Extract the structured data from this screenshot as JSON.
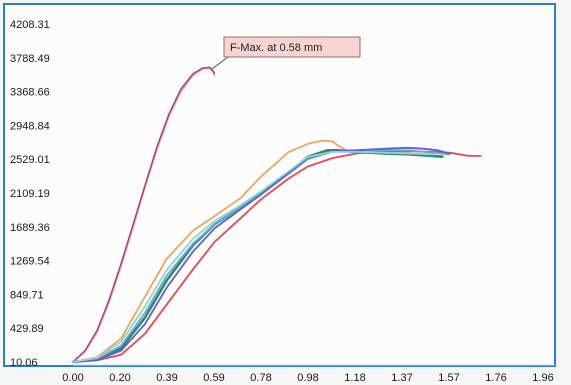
{
  "chart_data": {
    "type": "line",
    "title": "",
    "xlabel": "",
    "ylabel": "",
    "xlim": [
      0.0,
      1.96
    ],
    "ylim": [
      10.06,
      4208.31
    ],
    "grid": false,
    "legend": "none",
    "x_ticks": [
      "0.00",
      "0.20",
      "0.39",
      "0.59",
      "0.78",
      "0.98",
      "1.18",
      "1.37",
      "1.57",
      "1.76",
      "1.96"
    ],
    "y_ticks": [
      "10.06",
      "429.89",
      "849.71",
      "1269.54",
      "1689.36",
      "2109.19",
      "2529.01",
      "2948.84",
      "3368.66",
      "3788.49",
      "4208.31"
    ],
    "annotation": {
      "text": "F-Max. at 0.58 mm",
      "x": 0.58,
      "y": 3650
    },
    "series": [
      {
        "color": "#c7a6d4",
        "x": [
          0.0,
          0.05,
          0.1,
          0.15,
          0.2,
          0.25,
          0.3,
          0.35,
          0.4,
          0.45,
          0.5,
          0.54,
          0.57,
          0.58,
          0.59
        ],
        "y": [
          10,
          140,
          380,
          750,
          1200,
          1680,
          2180,
          2650,
          3060,
          3370,
          3570,
          3650,
          3660,
          3640,
          3570
        ]
      },
      {
        "color": "#b33a6e",
        "x": [
          0.0,
          0.05,
          0.1,
          0.15,
          0.2,
          0.25,
          0.3,
          0.35,
          0.4,
          0.45,
          0.5,
          0.54,
          0.57,
          0.59
        ],
        "y": [
          10,
          150,
          400,
          780,
          1230,
          1710,
          2200,
          2680,
          3090,
          3400,
          3590,
          3660,
          3670,
          3600
        ]
      },
      {
        "color": "#f0a460",
        "x": [
          0.0,
          0.1,
          0.2,
          0.3,
          0.39,
          0.5,
          0.59,
          0.7,
          0.78,
          0.9,
          0.98,
          1.04,
          1.08,
          1.11,
          1.15,
          1.22,
          1.3,
          1.4
        ],
        "y": [
          10,
          70,
          300,
          820,
          1290,
          1640,
          1820,
          2050,
          2300,
          2620,
          2720,
          2760,
          2750,
          2690,
          2620,
          2610,
          2610,
          2610
        ]
      },
      {
        "color": "#e8455a",
        "x": [
          0.0,
          0.1,
          0.2,
          0.3,
          0.39,
          0.5,
          0.59,
          0.7,
          0.78,
          0.9,
          0.98,
          1.08,
          1.18,
          1.3,
          1.37,
          1.5,
          1.57,
          1.65,
          1.7
        ],
        "y": [
          10,
          30,
          100,
          360,
          720,
          1160,
          1500,
          1800,
          2020,
          2290,
          2440,
          2540,
          2600,
          2630,
          2630,
          2620,
          2610,
          2570,
          2570
        ]
      },
      {
        "color": "#2c8a6c",
        "x": [
          0.0,
          0.1,
          0.2,
          0.3,
          0.39,
          0.5,
          0.59,
          0.7,
          0.78,
          0.9,
          0.98,
          1.06,
          1.1,
          1.18,
          1.3,
          1.4,
          1.5,
          1.54
        ],
        "y": [
          10,
          40,
          180,
          560,
          1020,
          1460,
          1720,
          1930,
          2090,
          2360,
          2560,
          2640,
          2640,
          2620,
          2600,
          2590,
          2570,
          2560
        ]
      },
      {
        "color": "#6aa8dc",
        "x": [
          0.0,
          0.1,
          0.2,
          0.3,
          0.39,
          0.5,
          0.59,
          0.7,
          0.78,
          0.9,
          0.98,
          1.08,
          1.18,
          1.3,
          1.4,
          1.5,
          1.57
        ],
        "y": [
          10,
          50,
          210,
          620,
          1080,
          1480,
          1720,
          1930,
          2090,
          2350,
          2530,
          2620,
          2640,
          2640,
          2640,
          2610,
          2590
        ]
      },
      {
        "color": "#5a5fd4",
        "x": [
          0.0,
          0.1,
          0.2,
          0.3,
          0.39,
          0.5,
          0.59,
          0.7,
          0.78,
          0.9,
          0.98,
          1.08,
          1.18,
          1.3,
          1.4,
          1.46,
          1.52,
          1.57
        ],
        "y": [
          10,
          35,
          150,
          480,
          930,
          1380,
          1670,
          1910,
          2080,
          2360,
          2550,
          2630,
          2640,
          2660,
          2670,
          2660,
          2640,
          2600
        ]
      },
      {
        "color": "#8fd6cc",
        "x": [
          0.0,
          0.1,
          0.2,
          0.3,
          0.39,
          0.5,
          0.59,
          0.7,
          0.78,
          0.9,
          0.98,
          1.08,
          1.18,
          1.3,
          1.4,
          1.5
        ],
        "y": [
          10,
          60,
          260,
          700,
          1150,
          1540,
          1760,
          1960,
          2120,
          2380,
          2560,
          2620,
          2620,
          2610,
          2600,
          2590
        ]
      }
    ]
  }
}
